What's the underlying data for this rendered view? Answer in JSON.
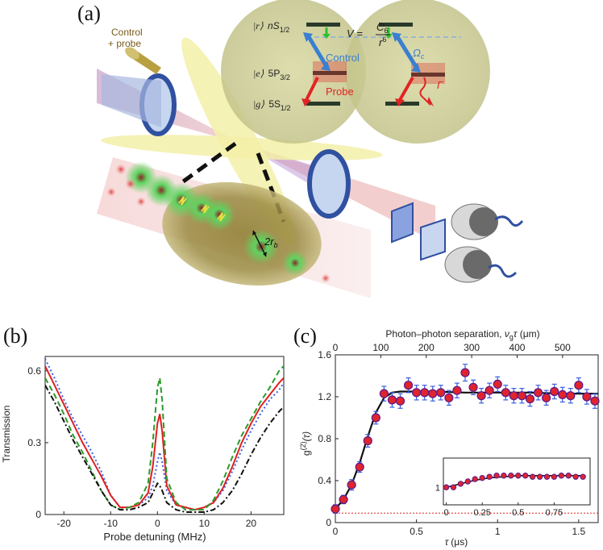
{
  "panel_a": {
    "letter": "(a)",
    "beam_label_line1": "Control",
    "beam_label_line2": "+ probe",
    "level_r_ket": "|r⟩",
    "level_r_state": "nS",
    "level_r_sub": "1/2",
    "level_e_ket": "|e⟩",
    "level_e_state": "5P",
    "level_e_sub": "3/2",
    "level_g_ket": "|g⟩",
    "level_g_state": "5S",
    "level_g_sub": "1/2",
    "interaction_lhs": "V =",
    "interaction_num": "C",
    "interaction_num_sub": "6",
    "interaction_den": "r",
    "interaction_den_sup": "6",
    "control_label": "Control",
    "probe_label": "Probe",
    "omega_label": "Ω",
    "omega_sub": "c",
    "gamma_label": "Γ",
    "blockade_radius": "2r",
    "blockade_radius_sub": "b",
    "colors": {
      "control": "#3a7fd0",
      "probe": "#e02424",
      "sphere": "#c8c98a",
      "atoms": "#3ccf3c"
    }
  },
  "chart_data": [
    {
      "panel": "(b)",
      "type": "line",
      "ylabel": "Transmission",
      "xlabel": "Probe detuning (MHz)",
      "xlim": [
        -24,
        27
      ],
      "ylim": [
        0,
        0.66
      ],
      "xticks": [
        "-20",
        "-10",
        "0",
        "10",
        "20"
      ],
      "xtick_values": [
        -20,
        -10,
        0,
        10,
        20
      ],
      "yticks": [
        "0",
        "0.3",
        "0.6"
      ],
      "ytick_values": [
        0,
        0.3,
        0.6
      ],
      "series": [
        {
          "color": "#3a5fe0",
          "style": "dotted",
          "x": [
            -24,
            -22,
            -20,
            -18,
            -16,
            -14,
            -12,
            -10,
            -8,
            -6,
            -4,
            -2,
            -1,
            0,
            0.5,
            1,
            2,
            4,
            6,
            8,
            10,
            12,
            14,
            16,
            18,
            20,
            22,
            24,
            26,
            27
          ],
          "y": [
            0.65,
            0.57,
            0.48,
            0.4,
            0.33,
            0.26,
            0.18,
            0.08,
            0.03,
            0.03,
            0.04,
            0.07,
            0.12,
            0.22,
            0.26,
            0.22,
            0.1,
            0.04,
            0.03,
            0.02,
            0.03,
            0.05,
            0.1,
            0.18,
            0.27,
            0.35,
            0.42,
            0.48,
            0.52,
            0.55
          ]
        },
        {
          "color": "#e02020",
          "style": "solid",
          "x": [
            -24,
            -22,
            -20,
            -18,
            -16,
            -14,
            -12,
            -10,
            -8,
            -6,
            -4,
            -2,
            -1,
            0,
            0.5,
            1,
            2,
            4,
            6,
            8,
            10,
            12,
            14,
            16,
            18,
            20,
            22,
            24,
            26,
            27
          ],
          "y": [
            0.62,
            0.54,
            0.46,
            0.38,
            0.3,
            0.23,
            0.16,
            0.08,
            0.03,
            0.03,
            0.04,
            0.09,
            0.2,
            0.38,
            0.42,
            0.35,
            0.12,
            0.04,
            0.03,
            0.02,
            0.03,
            0.05,
            0.11,
            0.2,
            0.3,
            0.38,
            0.45,
            0.5,
            0.55,
            0.57
          ]
        },
        {
          "color": "#2a9a2a",
          "style": "dashed",
          "x": [
            -24,
            -22,
            -20,
            -18,
            -16,
            -14,
            -12,
            -10,
            -8,
            -6,
            -4,
            -2,
            -1,
            0,
            0.5,
            1,
            2,
            4,
            6,
            8,
            10,
            12,
            14,
            16,
            18,
            20,
            22,
            24,
            26,
            27
          ],
          "y": [
            0.57,
            0.5,
            0.42,
            0.33,
            0.26,
            0.18,
            0.1,
            0.04,
            0.02,
            0.03,
            0.05,
            0.13,
            0.3,
            0.53,
            0.57,
            0.48,
            0.15,
            0.05,
            0.02,
            0.02,
            0.02,
            0.06,
            0.14,
            0.24,
            0.33,
            0.4,
            0.47,
            0.53,
            0.6,
            0.62
          ]
        },
        {
          "color": "#111111",
          "style": "dashdot",
          "x": [
            -24,
            -22,
            -20,
            -18,
            -16,
            -14,
            -12,
            -10,
            -8,
            -6,
            -4,
            -2,
            -1,
            0,
            0.5,
            1,
            2,
            4,
            6,
            8,
            10,
            12,
            14,
            16,
            18,
            20,
            22,
            24,
            26,
            27
          ],
          "y": [
            0.54,
            0.47,
            0.39,
            0.31,
            0.24,
            0.17,
            0.1,
            0.04,
            0.02,
            0.02,
            0.03,
            0.05,
            0.09,
            0.13,
            0.12,
            0.1,
            0.05,
            0.02,
            0.01,
            0.01,
            0.01,
            0.02,
            0.05,
            0.1,
            0.17,
            0.25,
            0.32,
            0.38,
            0.43,
            0.45
          ]
        }
      ]
    },
    {
      "panel": "(c)",
      "type": "scatter",
      "ylabel_main": "g",
      "ylabel_sup": "(2)",
      "ylabel_arg": "(τ)",
      "xlabel_symbol": "τ",
      "xlabel_unit": "(μs)",
      "top_xlabel_text": "Photon–photon separation, ",
      "top_xlabel_sym": "ν",
      "top_xlabel_sub": "g",
      "top_xlabel_tau": "τ",
      "top_xlabel_unit": " (μm)",
      "xlim": [
        0,
        1.62
      ],
      "ylim": [
        0,
        1.6
      ],
      "xticks": [
        "0",
        "0.5",
        "1",
        "1.5"
      ],
      "xtick_values": [
        0,
        0.5,
        1.0,
        1.5
      ],
      "yticks": [
        "0",
        "0.4",
        "0.8",
        "1.2",
        "1.6"
      ],
      "ytick_values": [
        0,
        0.4,
        0.8,
        1.2,
        1.6
      ],
      "top_xticks": [
        "0",
        "100",
        "200",
        "300",
        "400",
        "500"
      ],
      "top_xtick_values": [
        0,
        100,
        200,
        300,
        400,
        500
      ],
      "top_um_per_us": 357,
      "baseline_y": 0.09,
      "points_x": [
        0.0,
        0.05,
        0.1,
        0.15,
        0.2,
        0.25,
        0.3,
        0.35,
        0.4,
        0.45,
        0.5,
        0.55,
        0.6,
        0.65,
        0.7,
        0.75,
        0.8,
        0.85,
        0.9,
        0.95,
        1.0,
        1.05,
        1.1,
        1.15,
        1.2,
        1.25,
        1.3,
        1.35,
        1.4,
        1.45,
        1.5,
        1.55,
        1.6
      ],
      "points_y": [
        0.13,
        0.22,
        0.36,
        0.53,
        0.78,
        1.0,
        1.23,
        1.17,
        1.16,
        1.31,
        1.24,
        1.24,
        1.23,
        1.24,
        1.19,
        1.26,
        1.43,
        1.29,
        1.21,
        1.26,
        1.32,
        1.24,
        1.21,
        1.21,
        1.18,
        1.24,
        1.19,
        1.25,
        1.22,
        1.21,
        1.31,
        1.2,
        1.16
      ],
      "errors": [
        0.04,
        0.04,
        0.05,
        0.05,
        0.06,
        0.06,
        0.07,
        0.07,
        0.07,
        0.07,
        0.07,
        0.07,
        0.07,
        0.07,
        0.07,
        0.07,
        0.08,
        0.07,
        0.07,
        0.07,
        0.07,
        0.07,
        0.07,
        0.07,
        0.07,
        0.07,
        0.07,
        0.07,
        0.07,
        0.07,
        0.07,
        0.07,
        0.07
      ],
      "fit_x": [
        0,
        0.05,
        0.1,
        0.15,
        0.2,
        0.25,
        0.3,
        0.35,
        0.4,
        0.5,
        0.6,
        0.8,
        1.0,
        1.2,
        1.4,
        1.62
      ],
      "fit_y": [
        0.13,
        0.22,
        0.36,
        0.57,
        0.82,
        1.05,
        1.19,
        1.24,
        1.25,
        1.25,
        1.25,
        1.24,
        1.24,
        1.24,
        1.23,
        1.23
      ],
      "inset": {
        "xticks": [
          "0",
          "0.25",
          "0.5",
          "0.75"
        ],
        "xtick_values": [
          0,
          0.25,
          0.5,
          0.75
        ],
        "yticks": [
          "1"
        ],
        "ytick_values": [
          1
        ],
        "xlim": [
          -0.02,
          1.0
        ],
        "ylim": [
          0.85,
          1.25
        ],
        "points_x": [
          0.0,
          0.05,
          0.1,
          0.15,
          0.2,
          0.25,
          0.3,
          0.35,
          0.4,
          0.45,
          0.5,
          0.55,
          0.6,
          0.65,
          0.7,
          0.75,
          0.8,
          0.85,
          0.9,
          0.95
        ],
        "points_y": [
          1.0,
          1.0,
          1.03,
          1.05,
          1.07,
          1.08,
          1.09,
          1.1,
          1.1,
          1.1,
          1.1,
          1.1,
          1.09,
          1.09,
          1.09,
          1.09,
          1.1,
          1.1,
          1.09,
          1.09
        ],
        "fit_x": [
          0,
          0.1,
          0.2,
          0.3,
          0.4,
          0.5,
          0.6,
          0.7,
          0.8,
          0.9,
          0.97
        ],
        "fit_y": [
          1.0,
          1.03,
          1.06,
          1.08,
          1.09,
          1.1,
          1.1,
          1.1,
          1.1,
          1.1,
          1.1
        ]
      }
    }
  ]
}
